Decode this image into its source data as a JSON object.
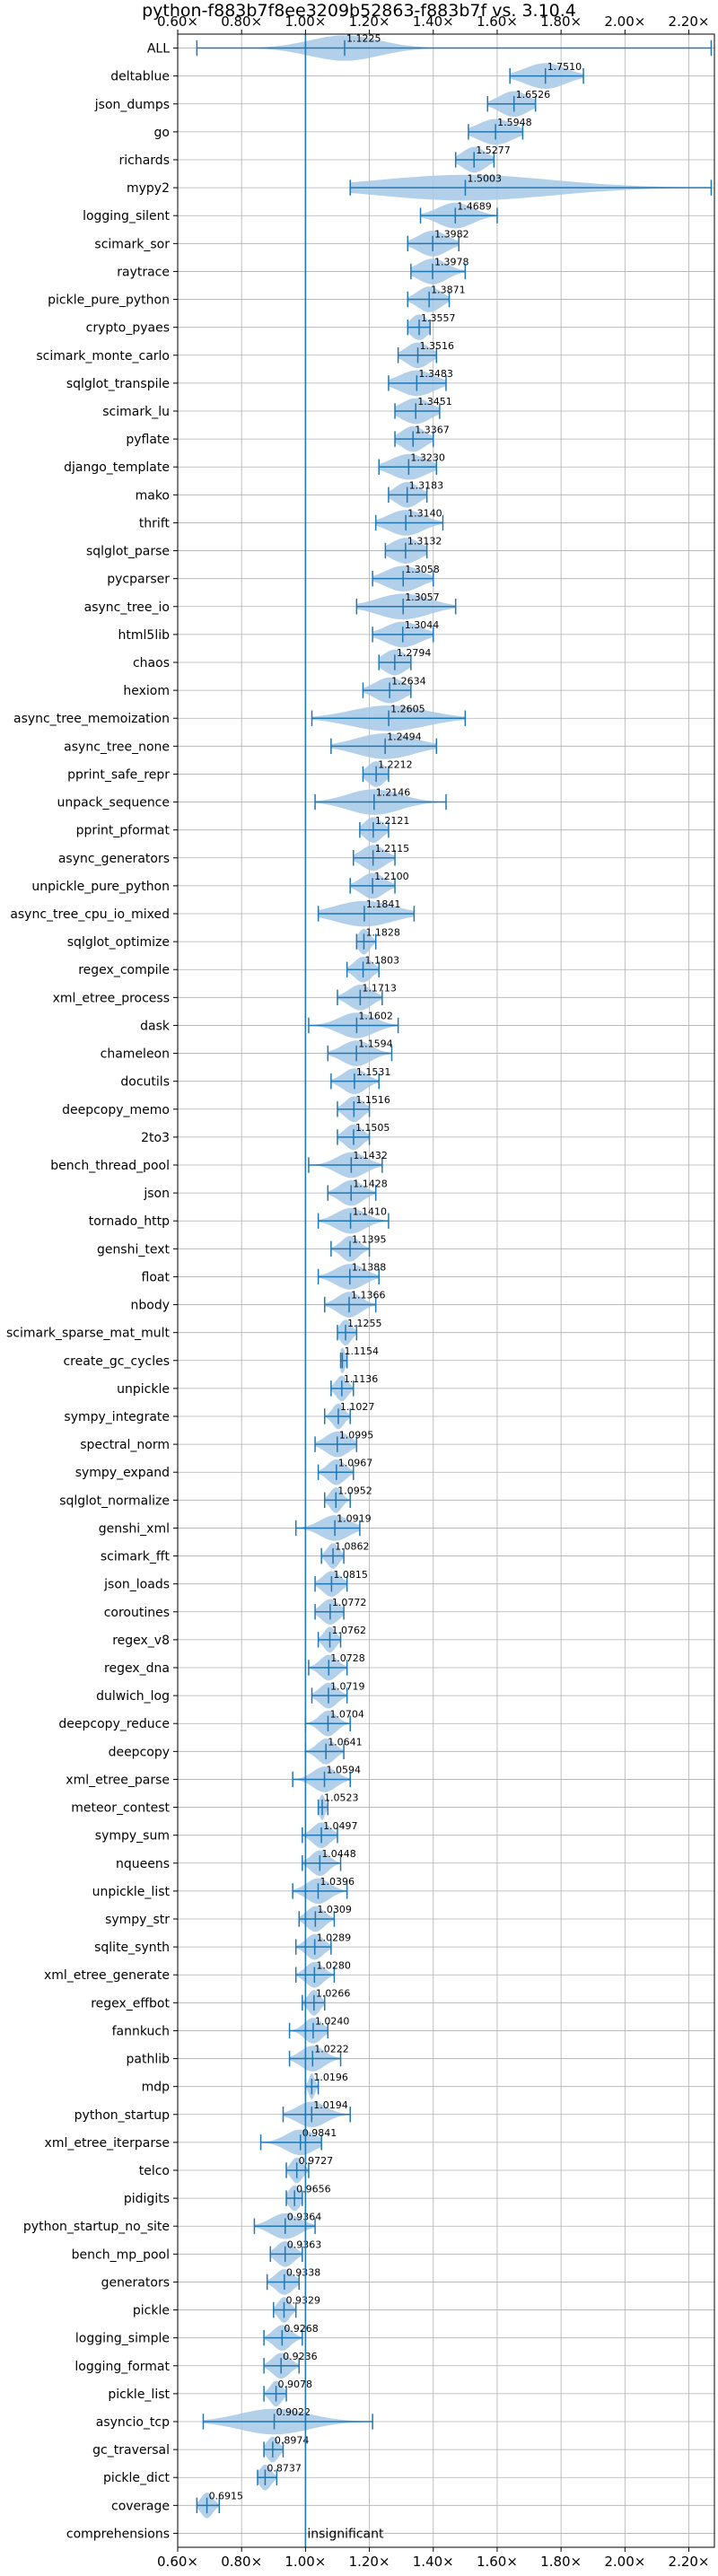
{
  "chart_data": {
    "type": "violin",
    "orientation": "horizontal",
    "title": "python-f883b7f8ee3209b52863-f883b7f vs. 3.10.4",
    "xlabel": "",
    "ylabel": "",
    "xlim": [
      0.6,
      2.28
    ],
    "x_ticks": [
      0.6,
      0.8,
      1.0,
      1.2,
      1.4,
      1.6,
      1.8,
      2.0,
      2.2
    ],
    "x_tick_labels": [
      "0.60×",
      "0.80×",
      "1.00×",
      "1.20×",
      "1.40×",
      "1.60×",
      "1.80×",
      "2.00×",
      "2.20×"
    ],
    "reference_line": 1.0,
    "grid": true,
    "accent_color": "#1f77b4",
    "violin_color": "#a6c8e6",
    "benchmarks": [
      {
        "name": "ALL",
        "value": 1.1225,
        "label": "1.1225",
        "min": 0.66,
        "max": 2.27,
        "spread": 0.12
      },
      {
        "name": "deltablue",
        "value": 1.751,
        "label": "1.7510",
        "min": 1.64,
        "max": 1.87,
        "spread": 0.07
      },
      {
        "name": "json_dumps",
        "value": 1.6526,
        "label": "1.6526",
        "min": 1.57,
        "max": 1.72,
        "spread": 0.05
      },
      {
        "name": "go",
        "value": 1.5948,
        "label": "1.5948",
        "min": 1.51,
        "max": 1.68,
        "spread": 0.06
      },
      {
        "name": "richards",
        "value": 1.5277,
        "label": "1.5277",
        "min": 1.47,
        "max": 1.59,
        "spread": 0.04
      },
      {
        "name": "mypy2",
        "value": 1.5003,
        "label": "1.5003",
        "min": 1.14,
        "max": 2.27,
        "spread": 0.3
      },
      {
        "name": "logging_silent",
        "value": 1.4689,
        "label": "1.4689",
        "min": 1.36,
        "max": 1.6,
        "spread": 0.06
      },
      {
        "name": "scimark_sor",
        "value": 1.3982,
        "label": "1.3982",
        "min": 1.32,
        "max": 1.48,
        "spread": 0.05
      },
      {
        "name": "raytrace",
        "value": 1.3978,
        "label": "1.3978",
        "min": 1.33,
        "max": 1.5,
        "spread": 0.05
      },
      {
        "name": "pickle_pure_python",
        "value": 1.3871,
        "label": "1.3871",
        "min": 1.32,
        "max": 1.45,
        "spread": 0.04
      },
      {
        "name": "crypto_pyaes",
        "value": 1.3557,
        "label": "1.3557",
        "min": 1.32,
        "max": 1.39,
        "spread": 0.03
      },
      {
        "name": "scimark_monte_carlo",
        "value": 1.3516,
        "label": "1.3516",
        "min": 1.29,
        "max": 1.41,
        "spread": 0.04
      },
      {
        "name": "sqlglot_transpile",
        "value": 1.3483,
        "label": "1.3483",
        "min": 1.26,
        "max": 1.44,
        "spread": 0.06
      },
      {
        "name": "scimark_lu",
        "value": 1.3451,
        "label": "1.3451",
        "min": 1.28,
        "max": 1.42,
        "spread": 0.05
      },
      {
        "name": "pyflate",
        "value": 1.3367,
        "label": "1.3367",
        "min": 1.28,
        "max": 1.4,
        "spread": 0.04
      },
      {
        "name": "django_template",
        "value": 1.323,
        "label": "1.3230",
        "min": 1.23,
        "max": 1.41,
        "spread": 0.06
      },
      {
        "name": "mako",
        "value": 1.3183,
        "label": "1.3183",
        "min": 1.26,
        "max": 1.38,
        "spread": 0.04
      },
      {
        "name": "thrift",
        "value": 1.314,
        "label": "1.3140",
        "min": 1.22,
        "max": 1.43,
        "spread": 0.06
      },
      {
        "name": "sqlglot_parse",
        "value": 1.3132,
        "label": "1.3132",
        "min": 1.25,
        "max": 1.38,
        "spread": 0.05
      },
      {
        "name": "pycparser",
        "value": 1.3058,
        "label": "1.3058",
        "min": 1.21,
        "max": 1.4,
        "spread": 0.06
      },
      {
        "name": "async_tree_io",
        "value": 1.3057,
        "label": "1.3057",
        "min": 1.16,
        "max": 1.47,
        "spread": 0.09
      },
      {
        "name": "html5lib",
        "value": 1.3044,
        "label": "1.3044",
        "min": 1.21,
        "max": 1.4,
        "spread": 0.06
      },
      {
        "name": "chaos",
        "value": 1.2794,
        "label": "1.2794",
        "min": 1.23,
        "max": 1.33,
        "spread": 0.04
      },
      {
        "name": "hexiom",
        "value": 1.2634,
        "label": "1.2634",
        "min": 1.18,
        "max": 1.33,
        "spread": 0.05
      },
      {
        "name": "async_tree_memoization",
        "value": 1.2605,
        "label": "1.2605",
        "min": 1.02,
        "max": 1.5,
        "spread": 0.13
      },
      {
        "name": "async_tree_none",
        "value": 1.2494,
        "label": "1.2494",
        "min": 1.08,
        "max": 1.41,
        "spread": 0.1
      },
      {
        "name": "pprint_safe_repr",
        "value": 1.2212,
        "label": "1.2212",
        "min": 1.18,
        "max": 1.26,
        "spread": 0.03
      },
      {
        "name": "unpack_sequence",
        "value": 1.2146,
        "label": "1.2146",
        "min": 1.03,
        "max": 1.44,
        "spread": 0.09
      },
      {
        "name": "pprint_pformat",
        "value": 1.2121,
        "label": "1.2121",
        "min": 1.17,
        "max": 1.26,
        "spread": 0.03
      },
      {
        "name": "async_generators",
        "value": 1.2115,
        "label": "1.2115",
        "min": 1.15,
        "max": 1.28,
        "spread": 0.04
      },
      {
        "name": "unpickle_pure_python",
        "value": 1.21,
        "label": "1.2100",
        "min": 1.14,
        "max": 1.28,
        "spread": 0.04
      },
      {
        "name": "async_tree_cpu_io_mixed",
        "value": 1.1841,
        "label": "1.1841",
        "min": 1.04,
        "max": 1.34,
        "spread": 0.1
      },
      {
        "name": "sqlglot_optimize",
        "value": 1.1828,
        "label": "1.1828",
        "min": 1.16,
        "max": 1.22,
        "spread": 0.02
      },
      {
        "name": "regex_compile",
        "value": 1.1803,
        "label": "1.1803",
        "min": 1.13,
        "max": 1.23,
        "spread": 0.03
      },
      {
        "name": "xml_etree_process",
        "value": 1.1713,
        "label": "1.1713",
        "min": 1.1,
        "max": 1.24,
        "spread": 0.04
      },
      {
        "name": "dask",
        "value": 1.1602,
        "label": "1.1602",
        "min": 1.01,
        "max": 1.29,
        "spread": 0.06
      },
      {
        "name": "chameleon",
        "value": 1.1594,
        "label": "1.1594",
        "min": 1.07,
        "max": 1.27,
        "spread": 0.05
      },
      {
        "name": "docutils",
        "value": 1.1531,
        "label": "1.1531",
        "min": 1.08,
        "max": 1.23,
        "spread": 0.04
      },
      {
        "name": "deepcopy_memo",
        "value": 1.1516,
        "label": "1.1516",
        "min": 1.1,
        "max": 1.2,
        "spread": 0.03
      },
      {
        "name": "2to3",
        "value": 1.1505,
        "label": "1.1505",
        "min": 1.1,
        "max": 1.2,
        "spread": 0.03
      },
      {
        "name": "bench_thread_pool",
        "value": 1.1432,
        "label": "1.1432",
        "min": 1.01,
        "max": 1.24,
        "spread": 0.05
      },
      {
        "name": "json",
        "value": 1.1428,
        "label": "1.1428",
        "min": 1.07,
        "max": 1.22,
        "spread": 0.04
      },
      {
        "name": "tornado_http",
        "value": 1.141,
        "label": "1.1410",
        "min": 1.04,
        "max": 1.26,
        "spread": 0.05
      },
      {
        "name": "genshi_text",
        "value": 1.1395,
        "label": "1.1395",
        "min": 1.08,
        "max": 1.2,
        "spread": 0.03
      },
      {
        "name": "float",
        "value": 1.1388,
        "label": "1.1388",
        "min": 1.04,
        "max": 1.23,
        "spread": 0.05
      },
      {
        "name": "nbody",
        "value": 1.1366,
        "label": "1.1366",
        "min": 1.06,
        "max": 1.22,
        "spread": 0.04
      },
      {
        "name": "scimark_sparse_mat_mult",
        "value": 1.1255,
        "label": "1.1255",
        "min": 1.1,
        "max": 1.16,
        "spread": 0.02
      },
      {
        "name": "create_gc_cycles",
        "value": 1.1154,
        "label": "1.1154",
        "min": 1.11,
        "max": 1.13,
        "spread": 0.01
      },
      {
        "name": "unpickle",
        "value": 1.1136,
        "label": "1.1136",
        "min": 1.08,
        "max": 1.15,
        "spread": 0.02
      },
      {
        "name": "sympy_integrate",
        "value": 1.1027,
        "label": "1.1027",
        "min": 1.06,
        "max": 1.14,
        "spread": 0.02
      },
      {
        "name": "spectral_norm",
        "value": 1.0995,
        "label": "1.0995",
        "min": 1.03,
        "max": 1.16,
        "spread": 0.04
      },
      {
        "name": "sympy_expand",
        "value": 1.0967,
        "label": "1.0967",
        "min": 1.04,
        "max": 1.15,
        "spread": 0.03
      },
      {
        "name": "sqlglot_normalize",
        "value": 1.0952,
        "label": "1.0952",
        "min": 1.06,
        "max": 1.14,
        "spread": 0.02
      },
      {
        "name": "genshi_xml",
        "value": 1.0919,
        "label": "1.0919",
        "min": 0.97,
        "max": 1.17,
        "spread": 0.05
      },
      {
        "name": "scimark_fft",
        "value": 1.0862,
        "label": "1.0862",
        "min": 1.05,
        "max": 1.12,
        "spread": 0.02
      },
      {
        "name": "json_loads",
        "value": 1.0815,
        "label": "1.0815",
        "min": 1.03,
        "max": 1.13,
        "spread": 0.03
      },
      {
        "name": "coroutines",
        "value": 1.0772,
        "label": "1.0772",
        "min": 1.03,
        "max": 1.12,
        "spread": 0.03
      },
      {
        "name": "regex_v8",
        "value": 1.0762,
        "label": "1.0762",
        "min": 1.04,
        "max": 1.11,
        "spread": 0.02
      },
      {
        "name": "regex_dna",
        "value": 1.0728,
        "label": "1.0728",
        "min": 1.01,
        "max": 1.13,
        "spread": 0.03
      },
      {
        "name": "dulwich_log",
        "value": 1.0719,
        "label": "1.0719",
        "min": 1.02,
        "max": 1.13,
        "spread": 0.03
      },
      {
        "name": "deepcopy_reduce",
        "value": 1.0704,
        "label": "1.0704",
        "min": 1.0,
        "max": 1.14,
        "spread": 0.03
      },
      {
        "name": "deepcopy",
        "value": 1.0641,
        "label": "1.0641",
        "min": 1.0,
        "max": 1.12,
        "spread": 0.03
      },
      {
        "name": "xml_etree_parse",
        "value": 1.0594,
        "label": "1.0594",
        "min": 0.96,
        "max": 1.14,
        "spread": 0.04
      },
      {
        "name": "meteor_contest",
        "value": 1.0523,
        "label": "1.0523",
        "min": 1.04,
        "max": 1.07,
        "spread": 0.01
      },
      {
        "name": "sympy_sum",
        "value": 1.0497,
        "label": "1.0497",
        "min": 0.99,
        "max": 1.1,
        "spread": 0.03
      },
      {
        "name": "nqueens",
        "value": 1.0448,
        "label": "1.0448",
        "min": 0.99,
        "max": 1.11,
        "spread": 0.03
      },
      {
        "name": "unpickle_list",
        "value": 1.0396,
        "label": "1.0396",
        "min": 0.96,
        "max": 1.13,
        "spread": 0.04
      },
      {
        "name": "sympy_str",
        "value": 1.0309,
        "label": "1.0309",
        "min": 0.98,
        "max": 1.09,
        "spread": 0.03
      },
      {
        "name": "sqlite_synth",
        "value": 1.0289,
        "label": "1.0289",
        "min": 0.97,
        "max": 1.08,
        "spread": 0.03
      },
      {
        "name": "xml_etree_generate",
        "value": 1.028,
        "label": "1.0280",
        "min": 0.97,
        "max": 1.09,
        "spread": 0.03
      },
      {
        "name": "regex_effbot",
        "value": 1.0266,
        "label": "1.0266",
        "min": 0.99,
        "max": 1.06,
        "spread": 0.02
      },
      {
        "name": "fannkuch",
        "value": 1.024,
        "label": "1.0240",
        "min": 0.95,
        "max": 1.07,
        "spread": 0.03
      },
      {
        "name": "pathlib",
        "value": 1.0222,
        "label": "1.0222",
        "min": 0.95,
        "max": 1.11,
        "spread": 0.04
      },
      {
        "name": "mdp",
        "value": 1.0196,
        "label": "1.0196",
        "min": 1.0,
        "max": 1.04,
        "spread": 0.01
      },
      {
        "name": "python_startup",
        "value": 1.0194,
        "label": "1.0194",
        "min": 0.93,
        "max": 1.14,
        "spread": 0.05
      },
      {
        "name": "xml_etree_iterparse",
        "value": 0.9841,
        "label": "0.9841",
        "min": 0.86,
        "max": 1.05,
        "spread": 0.05
      },
      {
        "name": "telco",
        "value": 0.9727,
        "label": "0.9727",
        "min": 0.94,
        "max": 1.01,
        "spread": 0.02
      },
      {
        "name": "pidigits",
        "value": 0.9656,
        "label": "0.9656",
        "min": 0.94,
        "max": 0.99,
        "spread": 0.02
      },
      {
        "name": "python_startup_no_site",
        "value": 0.9364,
        "label": "0.9364",
        "min": 0.84,
        "max": 1.03,
        "spread": 0.05
      },
      {
        "name": "bench_mp_pool",
        "value": 0.9363,
        "label": "0.9363",
        "min": 0.89,
        "max": 0.99,
        "spread": 0.03
      },
      {
        "name": "generators",
        "value": 0.9338,
        "label": "0.9338",
        "min": 0.88,
        "max": 0.98,
        "spread": 0.03
      },
      {
        "name": "pickle",
        "value": 0.9329,
        "label": "0.9329",
        "min": 0.9,
        "max": 0.97,
        "spread": 0.02
      },
      {
        "name": "logging_simple",
        "value": 0.9268,
        "label": "0.9268",
        "min": 0.87,
        "max": 0.99,
        "spread": 0.03
      },
      {
        "name": "logging_format",
        "value": 0.9236,
        "label": "0.9236",
        "min": 0.87,
        "max": 0.98,
        "spread": 0.03
      },
      {
        "name": "pickle_list",
        "value": 0.9078,
        "label": "0.9078",
        "min": 0.87,
        "max": 0.94,
        "spread": 0.02
      },
      {
        "name": "asyncio_tcp",
        "value": 0.9022,
        "label": "0.9022",
        "min": 0.68,
        "max": 1.21,
        "spread": 0.12
      },
      {
        "name": "gc_traversal",
        "value": 0.8974,
        "label": "0.8974",
        "min": 0.87,
        "max": 0.93,
        "spread": 0.02
      },
      {
        "name": "pickle_dict",
        "value": 0.8737,
        "label": "0.8737",
        "min": 0.85,
        "max": 0.91,
        "spread": 0.02
      },
      {
        "name": "coverage",
        "value": 0.6915,
        "label": "0.6915",
        "min": 0.66,
        "max": 0.73,
        "spread": 0.02
      },
      {
        "name": "comprehensions",
        "value": null,
        "label": "",
        "note": "insignificant"
      }
    ]
  }
}
